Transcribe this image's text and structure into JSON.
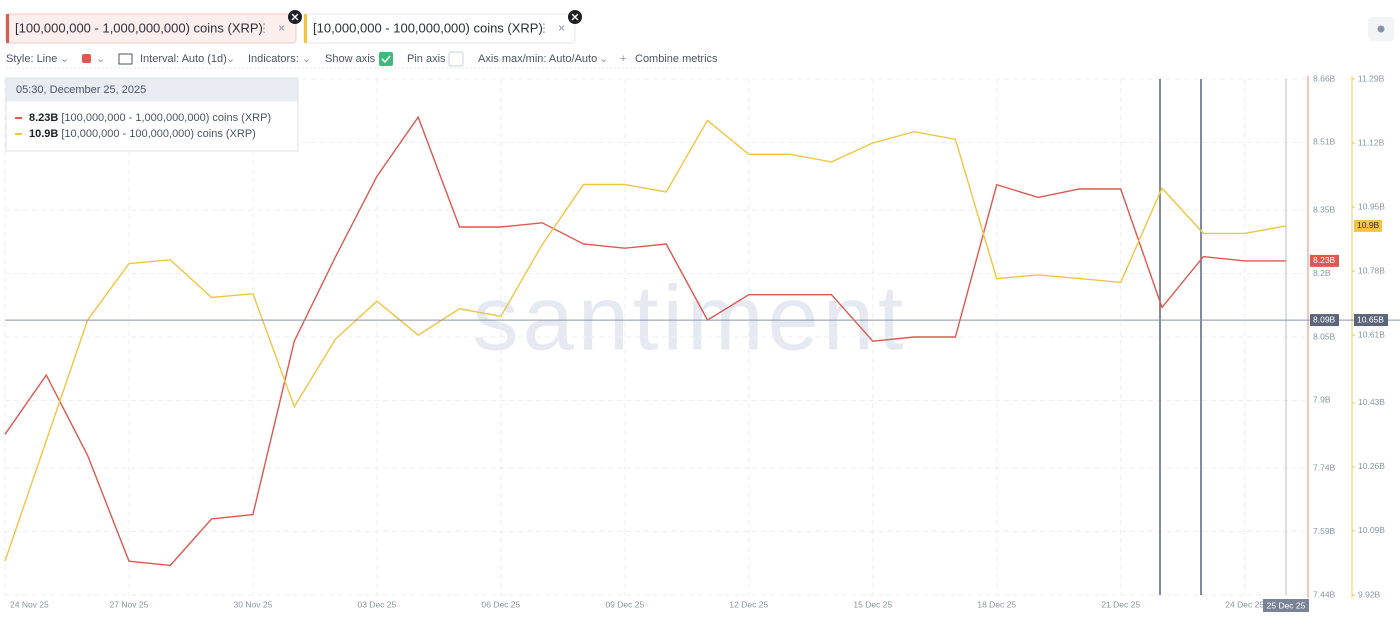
{
  "chart_data": {
    "type": "line",
    "tabs_note": null,
    "toolbar": {
      "style": "Style: Line",
      "interval": "Interval: Auto (1d)",
      "indicators": "Indicators:",
      "show_axis": "Show axis",
      "pin_axis": "Pin axis",
      "axis_max_min": "Axis max/min: Auto/Auto",
      "combine": "Combine metrics"
    },
    "watermark": "santiment",
    "tooltip_time": "05:30, December 25, 2025",
    "categories": [
      "24 Nov 25",
      null,
      null,
      "27 Nov 25",
      null,
      null,
      "30 Nov 25",
      null,
      null,
      "03 Dec 25",
      null,
      null,
      "06 Dec 25",
      null,
      null,
      "09 Dec 25",
      null,
      null,
      "12 Dec 25",
      null,
      null,
      "15 Dec 25",
      null,
      null,
      "18 Dec 25",
      null,
      null,
      "21 Dec 25",
      null,
      null,
      "24 Dec 25",
      "25 Dec 25"
    ],
    "series": [
      {
        "name": "[100,000,000 - 1,000,000,000) coins (XRP)",
        "color": "#e0574f",
        "axis": "y",
        "values": [
          7.82,
          7.96,
          7.77,
          7.52,
          7.51,
          7.62,
          7.63,
          8.04,
          8.24,
          8.43,
          8.57,
          8.31,
          8.31,
          8.32,
          8.27,
          8.26,
          8.27,
          8.09,
          8.15,
          8.15,
          8.15,
          8.04,
          8.05,
          8.05,
          8.41,
          8.38,
          8.4,
          8.4,
          8.12,
          8.24,
          8.23,
          8.23
        ],
        "value_labels": [
          null,
          null,
          null,
          null,
          null,
          null,
          null,
          null,
          null,
          null,
          null,
          null,
          null,
          null,
          null,
          null,
          null,
          null,
          null,
          null,
          null,
          null,
          null,
          null,
          null,
          null,
          null,
          null,
          null,
          null,
          null,
          "8.23B"
        ]
      },
      {
        "name": "[10,000,000 - 100,000,000) coins (XRP)",
        "color": "#f2c443",
        "axis": "y2",
        "values": [
          10.01,
          10.33,
          10.65,
          10.8,
          10.81,
          10.71,
          10.72,
          10.42,
          10.6,
          10.7,
          10.61,
          10.68,
          10.66,
          10.85,
          11.01,
          11.01,
          10.99,
          11.18,
          11.09,
          11.09,
          11.07,
          11.12,
          11.15,
          11.13,
          10.76,
          10.77,
          10.76,
          10.75,
          11.0,
          10.88,
          10.88,
          10.9
        ],
        "value_labels": [
          null,
          null,
          null,
          null,
          null,
          null,
          null,
          null,
          null,
          null,
          null,
          null,
          null,
          null,
          null,
          null,
          null,
          null,
          null,
          null,
          null,
          null,
          null,
          null,
          null,
          null,
          null,
          null,
          null,
          null,
          null,
          "10.9B"
        ]
      }
    ],
    "ylim": [
      7.44,
      8.66
    ],
    "yticks": [
      {
        "value": 7.44,
        "label": "7.44B"
      },
      {
        "value": 7.59,
        "label": "7.59B"
      },
      {
        "value": 7.74,
        "label": "7.74B"
      },
      {
        "value": 7.9,
        "label": "7.9B"
      },
      {
        "value": 8.05,
        "label": "8.05B"
      },
      {
        "value": 8.2,
        "label": "8.2B"
      },
      {
        "value": 8.35,
        "label": "8.35B"
      },
      {
        "value": 8.51,
        "label": "8.51B"
      },
      {
        "value": 8.66,
        "label": "8.66B"
      }
    ],
    "y2lim": [
      9.92,
      11.29
    ],
    "y2ticks": [
      {
        "value": 9.92,
        "label": "9.92B"
      },
      {
        "value": 10.09,
        "label": "10.09B"
      },
      {
        "value": 10.26,
        "label": "10.26B"
      },
      {
        "value": 10.43,
        "label": "10.43B"
      },
      {
        "value": 10.61,
        "label": "10.61B"
      },
      {
        "value": 10.78,
        "label": "10.78B"
      },
      {
        "value": 10.95,
        "label": "10.95B"
      },
      {
        "value": 11.12,
        "label": "11.12B"
      },
      {
        "value": 11.29,
        "label": "11.29B"
      }
    ],
    "crosshair": {
      "y": {
        "value": 8.09,
        "label": "8.09B"
      },
      "y2": {
        "value": 10.65,
        "label": "10.65B"
      }
    },
    "grid": true
  }
}
